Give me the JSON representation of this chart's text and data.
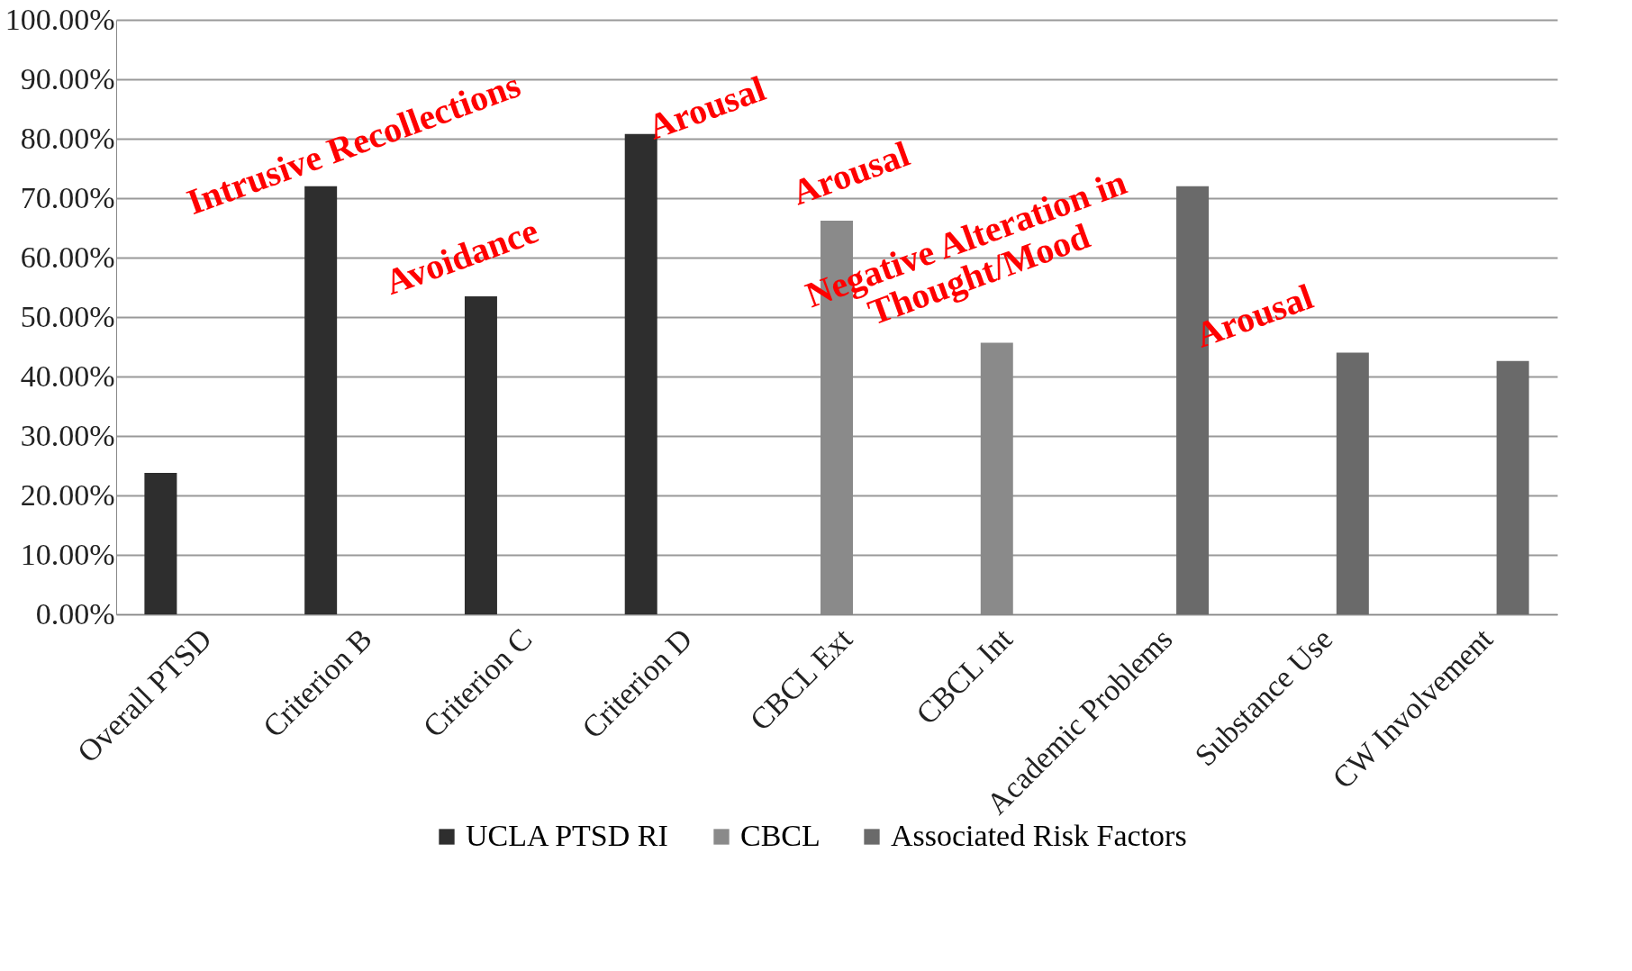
{
  "chart_data": {
    "type": "bar",
    "categories": [
      "Overall PTSD",
      "Criterion B",
      "Criterion C",
      "Criterion D",
      "CBCL Ext",
      "CBCL Int",
      "Academic Problems",
      "Substance Use",
      "CW Involvement"
    ],
    "series": [
      {
        "name": "UCLA PTSD RI",
        "color": "#2e2e2e",
        "values": [
          23.8,
          72,
          53.5,
          80.8,
          null,
          null,
          null,
          null,
          null
        ]
      },
      {
        "name": "CBCL",
        "color": "#8a8a8a",
        "values": [
          null,
          null,
          null,
          null,
          66.2,
          45.7,
          null,
          null,
          null
        ]
      },
      {
        "name": "Associated Risk Factors",
        "color": "#6a6a6a",
        "values": [
          null,
          null,
          null,
          null,
          null,
          null,
          72,
          44,
          42.6
        ]
      }
    ],
    "ylim": [
      0,
      100
    ],
    "yticks": [
      {
        "value": 0,
        "label": "0.00%"
      },
      {
        "value": 10,
        "label": "10.00%"
      },
      {
        "value": 20,
        "label": "20.00%"
      },
      {
        "value": 30,
        "label": "30.00%"
      },
      {
        "value": 40,
        "label": "40.00%"
      },
      {
        "value": 50,
        "label": "50.00%"
      },
      {
        "value": 60,
        "label": "60.00%"
      },
      {
        "value": 70,
        "label": "70.00%"
      },
      {
        "value": 80,
        "label": "80.00%"
      },
      {
        "value": 90,
        "label": "90.00%"
      },
      {
        "value": 100,
        "label": "100.00%"
      }
    ],
    "grid": "y",
    "legend": "bottom",
    "annotations": [
      "Intrusive Recollections",
      "Avoidance",
      "Arousal",
      "Arousal",
      "Negative Alteration in\nThought/Mood",
      "Arousal"
    ]
  }
}
